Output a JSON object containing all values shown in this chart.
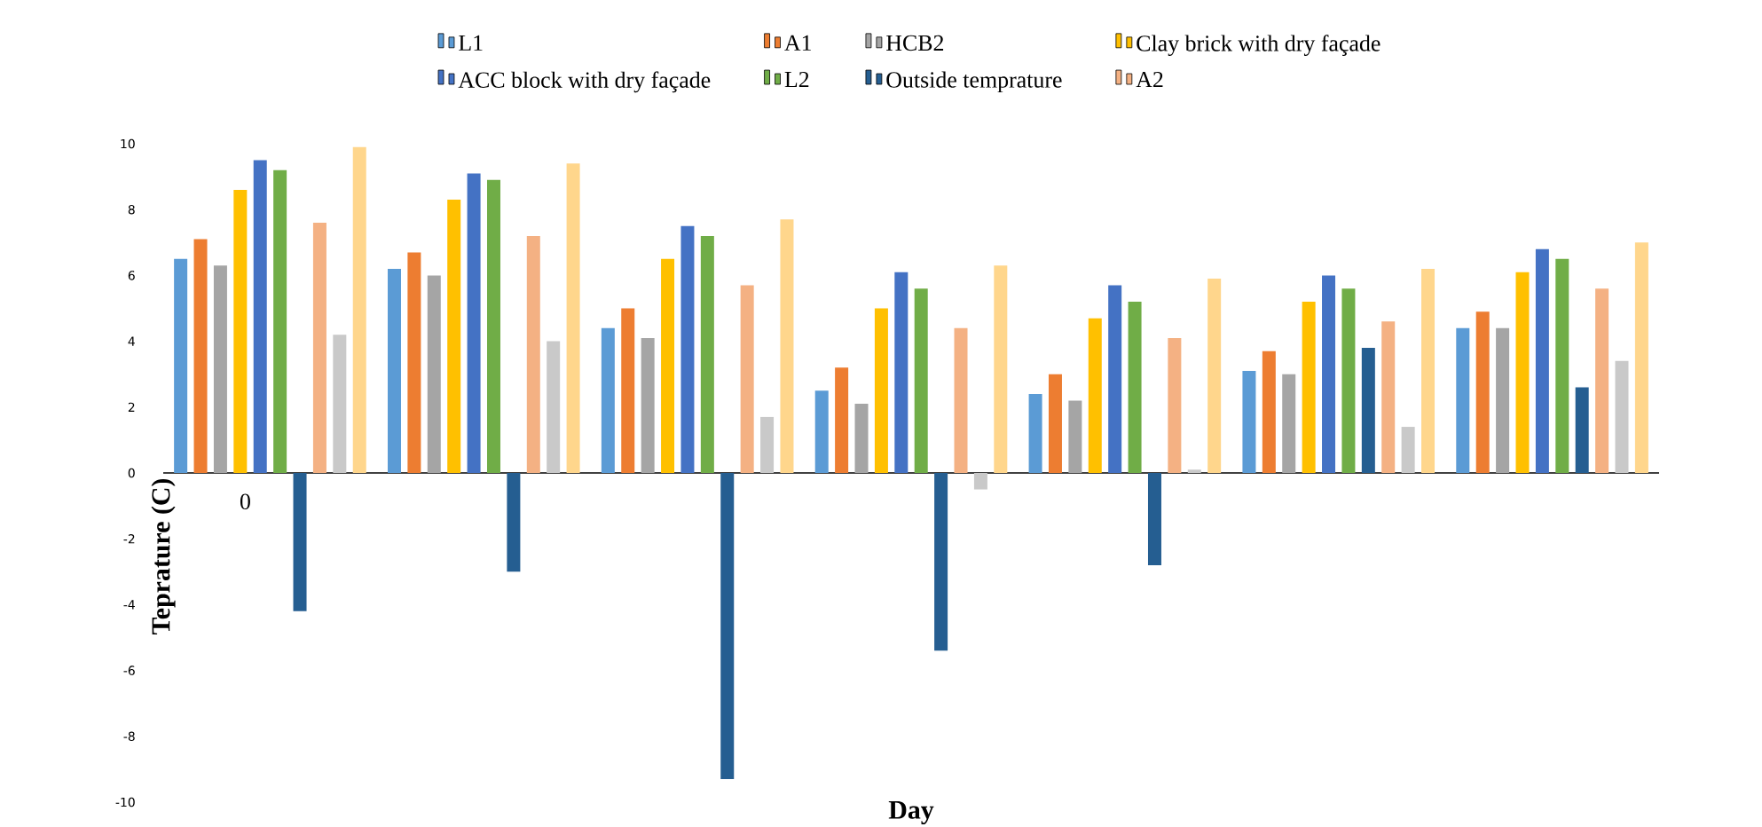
{
  "chart_data": {
    "type": "bar",
    "xlabel": "Day",
    "ylabel": "Teprature (C)",
    "categories": [
      "0",
      null,
      null,
      null,
      null,
      null,
      null
    ],
    "ylim": [
      -10,
      10
    ],
    "yticks": [
      -10,
      -8,
      -6,
      -4,
      -2,
      0,
      2,
      4,
      6,
      8,
      10
    ],
    "legend": "top",
    "series": [
      {
        "name": "L1",
        "color": "#5b9bd5",
        "values": [
          6.5,
          6.2,
          4.4,
          2.5,
          2.4,
          3.1,
          4.4
        ]
      },
      {
        "name": "A1",
        "color": "#ed7d31",
        "values": [
          7.1,
          6.7,
          5.0,
          3.2,
          3.0,
          3.7,
          4.9
        ]
      },
      {
        "name": "HCB2",
        "color": "#a5a5a5",
        "values": [
          6.3,
          6.0,
          4.1,
          2.1,
          2.2,
          3.0,
          4.4
        ]
      },
      {
        "name": "Clay brick with dry façade",
        "color": "#ffc000",
        "values": [
          8.6,
          8.3,
          6.5,
          5.0,
          4.7,
          5.2,
          6.1
        ]
      },
      {
        "name": "ACC block with dry façade",
        "color": "#4472c4",
        "values": [
          9.5,
          9.1,
          7.5,
          6.1,
          5.7,
          6.0,
          6.8
        ]
      },
      {
        "name": "L2",
        "color": "#70ad47",
        "values": [
          9.2,
          8.9,
          7.2,
          5.6,
          5.2,
          5.6,
          6.5
        ]
      },
      {
        "name": "Outside temprature",
        "color": "#255e91",
        "values": [
          -4.2,
          -3.0,
          -9.3,
          -5.4,
          -2.8,
          3.8,
          2.6
        ]
      },
      {
        "name": "A2",
        "color": "#f4b183",
        "values": [
          7.6,
          7.2,
          5.7,
          4.4,
          4.1,
          4.6,
          5.6
        ]
      },
      {
        "color": "#c9c9c9",
        "values": [
          4.2,
          4.0,
          1.7,
          -0.5,
          0.1,
          1.4,
          3.4
        ]
      },
      {
        "color": "#ffd68c",
        "values": [
          9.9,
          9.4,
          7.7,
          6.3,
          5.9,
          6.2,
          7.0
        ]
      }
    ]
  }
}
